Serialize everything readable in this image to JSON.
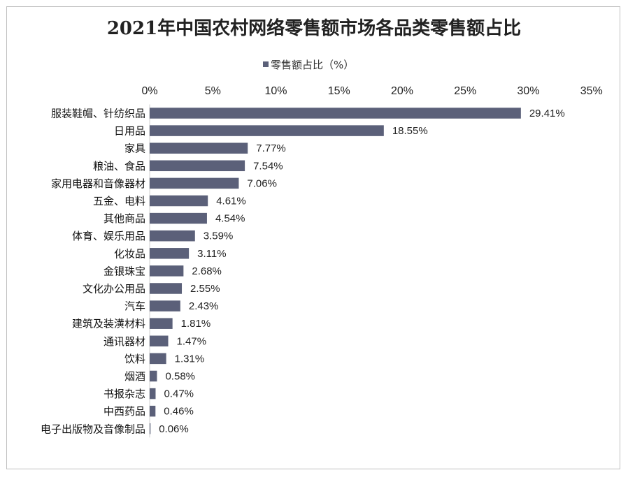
{
  "chart_data": {
    "type": "bar",
    "orientation": "horizontal",
    "title": "2021年中国农村网络零售额市场各品类零售额占比",
    "legend": [
      "零售额占比（%）"
    ],
    "legend_position": "top",
    "bar_color": "#5b6079",
    "x_axis_position": "top",
    "xlim": [
      0,
      35
    ],
    "x_ticks": [
      "0%",
      "5%",
      "10%",
      "15%",
      "20%",
      "25%",
      "30%",
      "35%"
    ],
    "grid": false,
    "categories": [
      "服装鞋帽、针纺织品",
      "日用品",
      "家具",
      "粮油、食品",
      "家用电器和音像器材",
      "五金、电料",
      "其他商品",
      "体育、娱乐用品",
      "化妆品",
      "金银珠宝",
      "文化办公用品",
      "汽车",
      "建筑及装潢材料",
      "通讯器材",
      "饮料",
      "烟酒",
      "书报杂志",
      "中西药品",
      "电子出版物及音像制品"
    ],
    "values": [
      29.41,
      18.55,
      7.77,
      7.54,
      7.06,
      4.61,
      4.54,
      3.59,
      3.11,
      2.68,
      2.55,
      2.43,
      1.81,
      1.47,
      1.31,
      0.58,
      0.47,
      0.46,
      0.06
    ],
    "data_labels": [
      "29.41%",
      "18.55%",
      "7.77%",
      "7.54%",
      "7.06%",
      "4.61%",
      "4.54%",
      "3.59%",
      "3.11%",
      "2.68%",
      "2.55%",
      "2.43%",
      "1.81%",
      "1.47%",
      "1.31%",
      "0.58%",
      "0.47%",
      "0.46%",
      "0.06%"
    ]
  }
}
